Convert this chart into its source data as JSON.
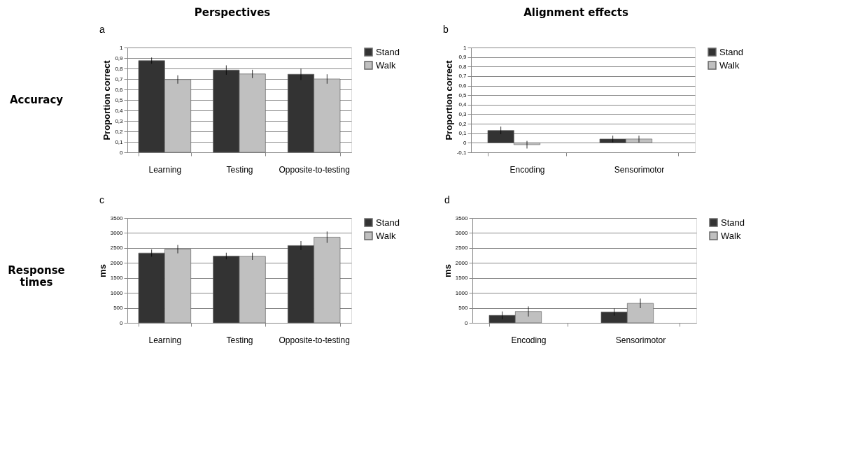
{
  "chart_data": [
    {
      "type": "bar",
      "title": "a",
      "annotations": [
        "Perspectives",
        "Accuracy"
      ],
      "ylabel": "Proportion correct",
      "categories": [
        "Learning",
        "Testing",
        "Opposite-to-testing"
      ],
      "series": [
        {
          "name": "Stand",
          "color": "#333333",
          "values": [
            0.875,
            0.785,
            0.745
          ],
          "errors": [
            0.03,
            0.045,
            0.055
          ]
        },
        {
          "name": "Walk",
          "color": "#c0c0c0",
          "values": [
            0.695,
            0.748,
            0.7
          ],
          "errors": [
            0.04,
            0.04,
            0.045
          ]
        }
      ],
      "ylim": [
        0,
        1
      ],
      "yticks": [
        0,
        {
          "value": 0.1,
          "label": "0,1"
        },
        {
          "value": 0.2,
          "label": "0,2"
        },
        {
          "value": 0.3,
          "label": "0,3"
        },
        {
          "value": 0.4,
          "label": "0,4"
        },
        {
          "value": 0.5,
          "label": "0,5"
        },
        {
          "value": 0.6,
          "label": "0,6"
        },
        {
          "value": 0.7,
          "label": "0,7"
        },
        {
          "value": 0.8,
          "label": "0,8"
        },
        {
          "value": 0.9,
          "label": "0,9"
        },
        1
      ],
      "grid": "y",
      "legend": "right"
    },
    {
      "type": "bar",
      "title": "b",
      "annotations": [
        "Alignment effects"
      ],
      "ylabel": "Proportion correct",
      "categories": [
        "Encoding",
        "Sensorimotor"
      ],
      "series": [
        {
          "name": "Stand",
          "color": "#333333",
          "values": [
            0.13,
            0.04
          ],
          "errors": [
            0.04,
            0.035
          ]
        },
        {
          "name": "Walk",
          "color": "#c0c0c0",
          "values": [
            -0.02,
            0.04
          ],
          "errors": [
            0.04,
            0.035
          ]
        }
      ],
      "ylim": [
        -0.1,
        1
      ],
      "yticks": [
        {
          "value": -0.1,
          "label": "-0,1"
        },
        0,
        {
          "value": 0.1,
          "label": "0,1"
        },
        {
          "value": 0.2,
          "label": "0,2"
        },
        {
          "value": 0.3,
          "label": "0,3"
        },
        {
          "value": 0.4,
          "label": "0,4"
        },
        {
          "value": 0.5,
          "label": "0,5"
        },
        {
          "value": 0.6,
          "label": "0,6"
        },
        {
          "value": 0.7,
          "label": "0,7"
        },
        {
          "value": 0.8,
          "label": "0,8"
        },
        {
          "value": 0.9,
          "label": "0,9"
        },
        1
      ],
      "grid": "y",
      "legend": "right"
    },
    {
      "type": "bar",
      "title": "c",
      "annotations": [
        "Response times"
      ],
      "ylabel": "ms",
      "categories": [
        "Learning",
        "Testing",
        "Opposite-to-testing"
      ],
      "series": [
        {
          "name": "Stand",
          "color": "#333333",
          "values": [
            2330,
            2230,
            2580
          ],
          "errors": [
            120,
            110,
            150
          ]
        },
        {
          "name": "Walk",
          "color": "#c0c0c0",
          "values": [
            2460,
            2220,
            2860
          ],
          "errors": [
            140,
            120,
            190
          ]
        }
      ],
      "ylim": [
        0,
        3500
      ],
      "yticks": [
        0,
        500,
        1000,
        1500,
        2000,
        2500,
        3000,
        3500
      ],
      "grid": "y",
      "legend": "right"
    },
    {
      "type": "bar",
      "title": "d",
      "ylabel": "ms",
      "categories": [
        "Encoding",
        "Sensorimotor"
      ],
      "series": [
        {
          "name": "Stand",
          "color": "#333333",
          "values": [
            250,
            360
          ],
          "errors": [
            130,
            120
          ]
        },
        {
          "name": "Walk",
          "color": "#c0c0c0",
          "values": [
            380,
            650
          ],
          "errors": [
            170,
            160
          ]
        }
      ],
      "ylim": [
        0,
        3500
      ],
      "yticks": [
        0,
        500,
        1000,
        1500,
        2000,
        2500,
        3000,
        3500
      ],
      "grid": "y",
      "legend": "right"
    }
  ]
}
